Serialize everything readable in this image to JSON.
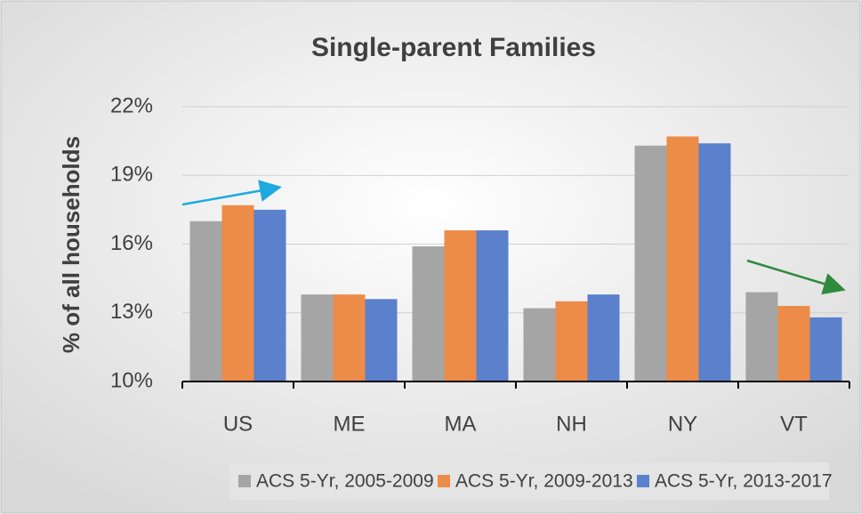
{
  "chart_data": {
    "type": "bar",
    "title": "Single-parent Families",
    "y_label": "% of all households",
    "categories": [
      "US",
      "ME",
      "MA",
      "NH",
      "NY",
      "VT"
    ],
    "series": [
      {
        "name": "ACS 5-Yr, 2005-2009",
        "color": "#a5a5a5",
        "values": [
          17.0,
          13.8,
          15.9,
          13.2,
          20.3,
          13.9
        ]
      },
      {
        "name": "ACS 5-Yr, 2009-2013",
        "color": "#ed8b48",
        "values": [
          17.7,
          13.8,
          16.6,
          13.5,
          20.7,
          13.3
        ]
      },
      {
        "name": "ACS 5-Yr, 2013-2017",
        "color": "#5b80cc",
        "values": [
          17.5,
          13.6,
          16.6,
          13.8,
          20.4,
          12.8
        ]
      }
    ],
    "ylim": [
      10,
      22
    ],
    "yticks": [
      {
        "value": 10,
        "label": "10%"
      },
      {
        "value": 13,
        "label": "13%"
      },
      {
        "value": 16,
        "label": "16%"
      },
      {
        "value": 19,
        "label": "19%"
      },
      {
        "value": 22,
        "label": "22%"
      }
    ],
    "grid": true,
    "legend": "bottom"
  }
}
